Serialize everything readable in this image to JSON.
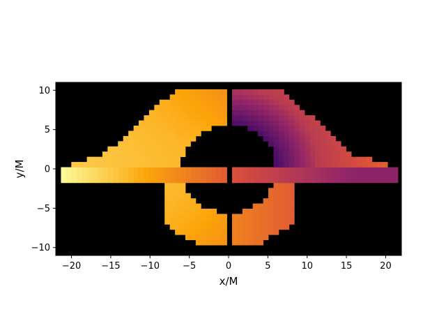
{
  "chart_data": {
    "type": "heatmap",
    "title": "",
    "xlabel": "x/M",
    "ylabel": "y/M",
    "xlim": [
      -22,
      22
    ],
    "ylim": [
      -11,
      11
    ],
    "x_ticks": [
      -20,
      -15,
      -10,
      -5,
      0,
      5,
      10,
      15,
      20
    ],
    "y_ticks": [
      -10,
      -5,
      0,
      5,
      10
    ],
    "x_tick_labels": [
      "−20",
      "−15",
      "−10",
      "−5",
      "0",
      "5",
      "10",
      "15",
      "20"
    ],
    "y_tick_labels": [
      "−10",
      "−5",
      "0",
      "5",
      "10"
    ],
    "background_color": "#000000",
    "colormap": "inferno",
    "colormap_stops": [
      "#000004",
      "#420a68",
      "#932667",
      "#dd513a",
      "#fca50a",
      "#fcffa4"
    ],
    "color_range": [
      0,
      1
    ],
    "grid": false,
    "description_of_field": "Relative intensity of an accretion-disk image around a black hole; approaching side (left) bright, receding side (right) dim, with a central dark shadow and a lensed ring."
  }
}
